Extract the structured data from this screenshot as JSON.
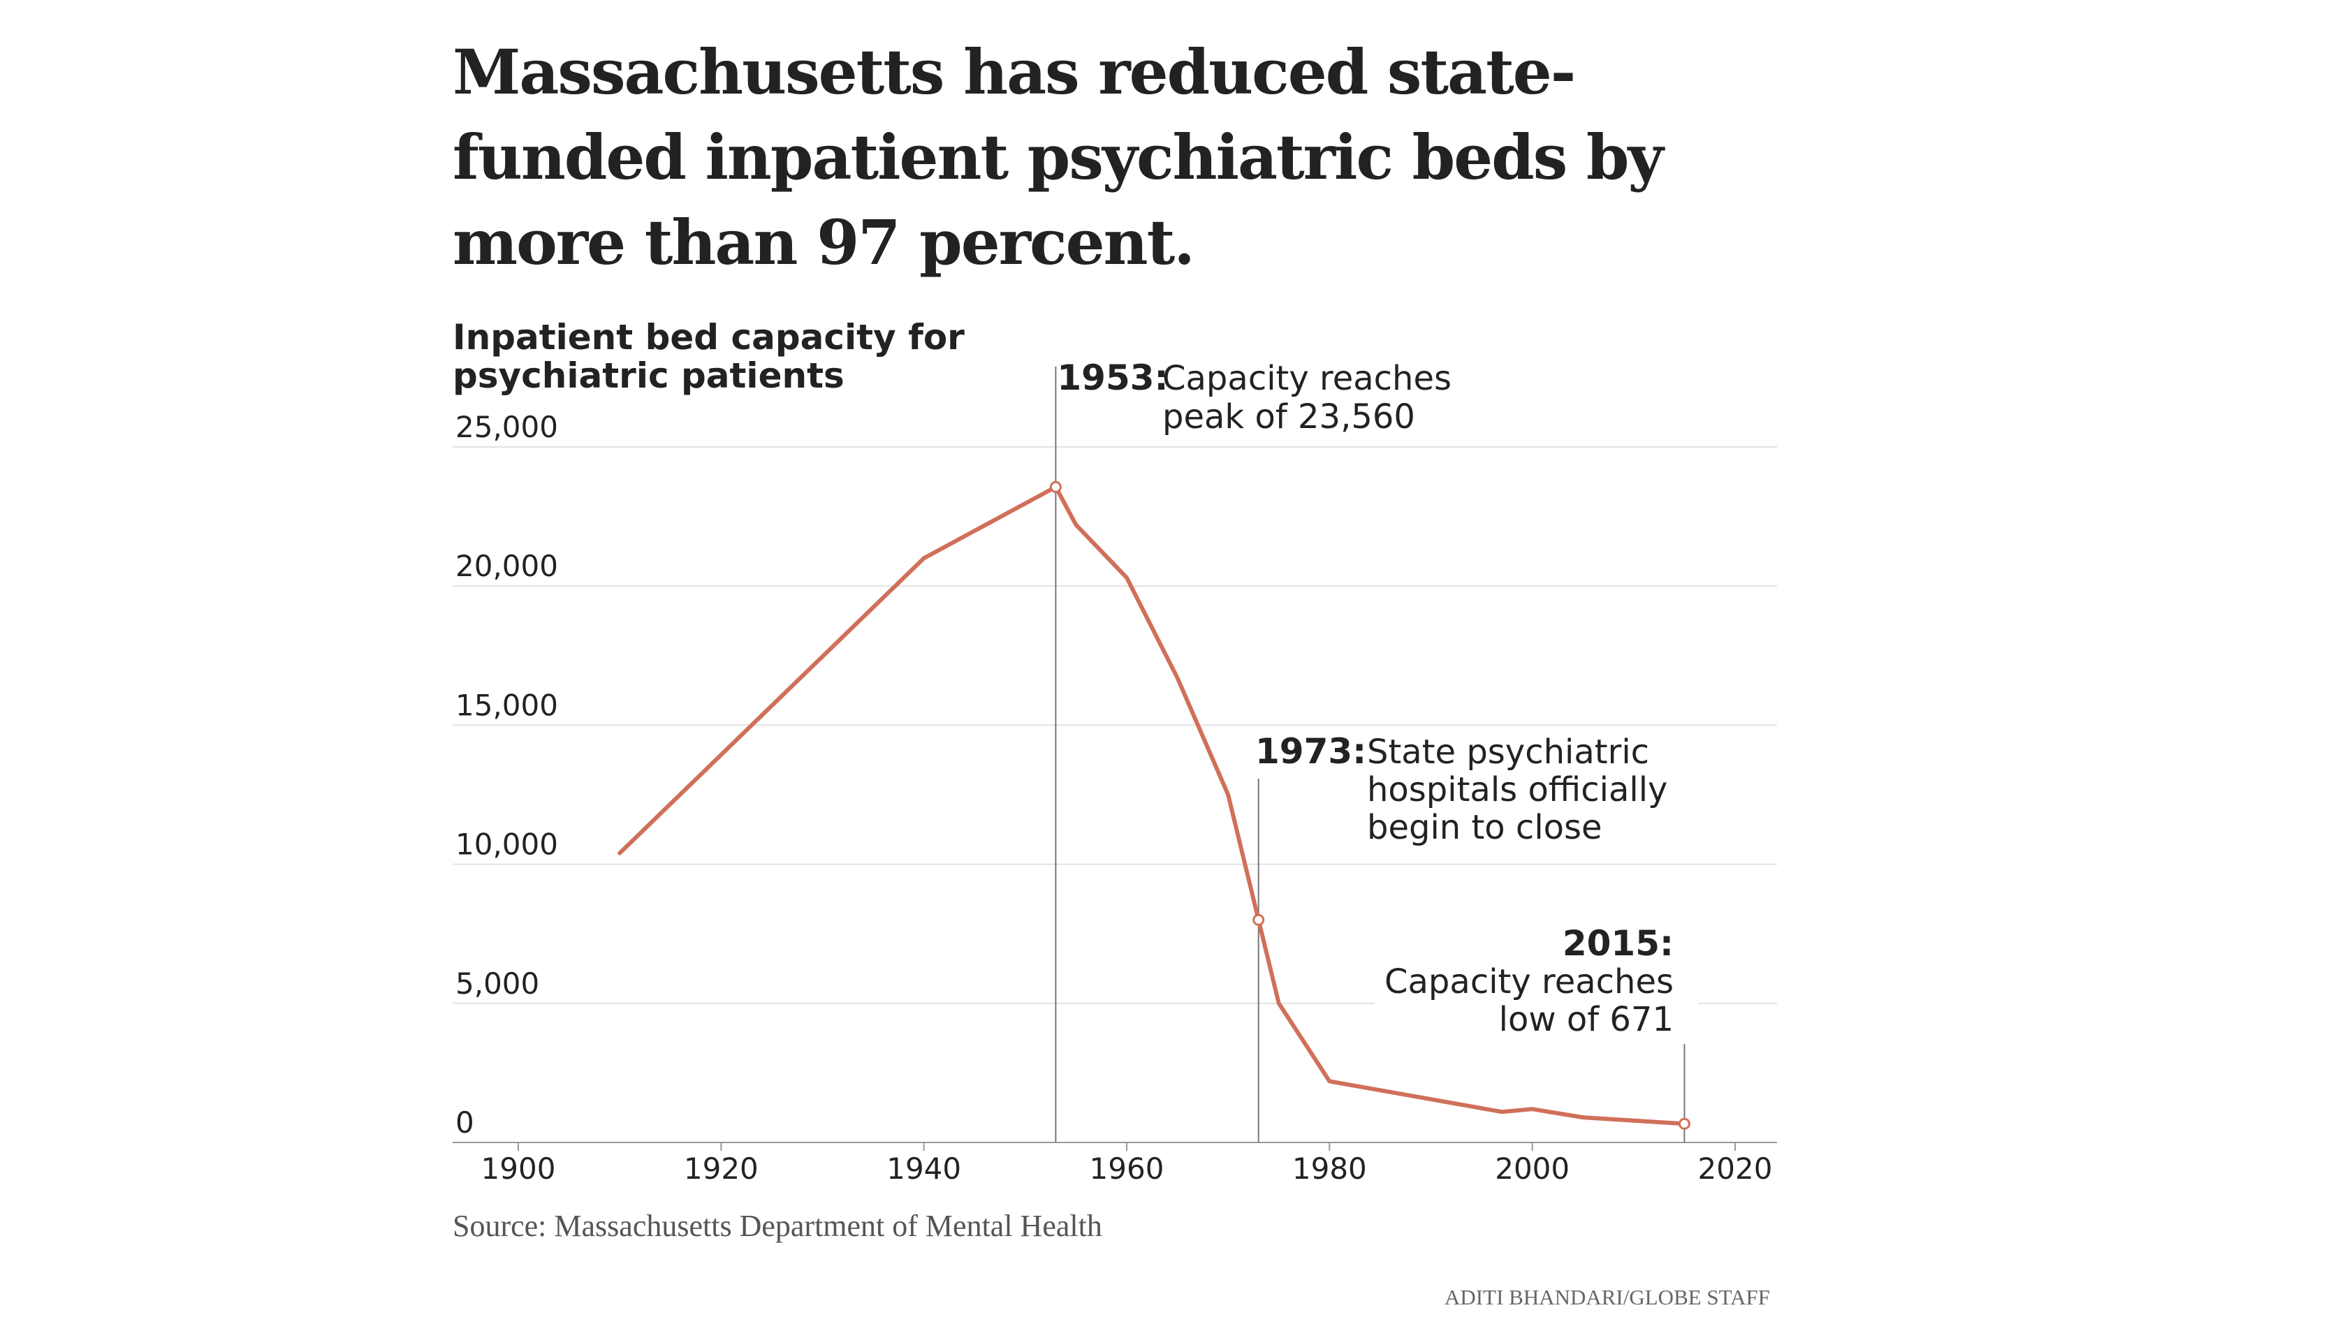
{
  "headline": "Massachusetts has reduced state-funded inpatient psychiatric beds by more than 97 percent.",
  "source": "Source: Massachusetts Department of Mental Health",
  "credit": "ADITI BHANDARI/GLOBE STAFF",
  "colors": {
    "line": "#d0705a",
    "grid": "#e2e2e2",
    "annotation_line": "#777777",
    "text": "#222222"
  },
  "chart_data": {
    "type": "line",
    "title": "Inpatient bed capacity for psychiatric patients",
    "title_lines": [
      "Inpatient bed capacity for",
      "psychiatric patients"
    ],
    "xlim": [
      1900,
      2020
    ],
    "ylim": [
      0,
      25000
    ],
    "x_ticks": [
      1900,
      1920,
      1940,
      1960,
      1980,
      2000,
      2020
    ],
    "y_ticks": [
      0,
      5000,
      10000,
      15000,
      20000,
      25000
    ],
    "y_tick_labels": [
      "0",
      "5,000",
      "10,000",
      "15,000",
      "20,000",
      "25,000"
    ],
    "grid": true,
    "series": [
      {
        "x": [
          1910,
          1940,
          1953,
          1955,
          1960,
          1965,
          1970,
          1973,
          1975,
          1980,
          1997,
          2000,
          2005,
          2015
        ],
        "y": [
          10400,
          21000,
          23560,
          22200,
          20300,
          16700,
          12500,
          8000,
          5000,
          2200,
          1100,
          1200,
          900,
          671
        ]
      }
    ],
    "annotations": [
      {
        "x": 1953,
        "y": 23560,
        "year": "1953:",
        "lines": [
          "Capacity reaches",
          "peak of 23,560"
        ]
      },
      {
        "x": 1973,
        "y": 8000,
        "year": "1973:",
        "lines": [
          "State psychiatric",
          "hospitals officially",
          "begin to close"
        ]
      },
      {
        "x": 2015,
        "y": 671,
        "year": "2015:",
        "lines": [
          "Capacity reaches",
          "low of 671"
        ]
      }
    ]
  }
}
